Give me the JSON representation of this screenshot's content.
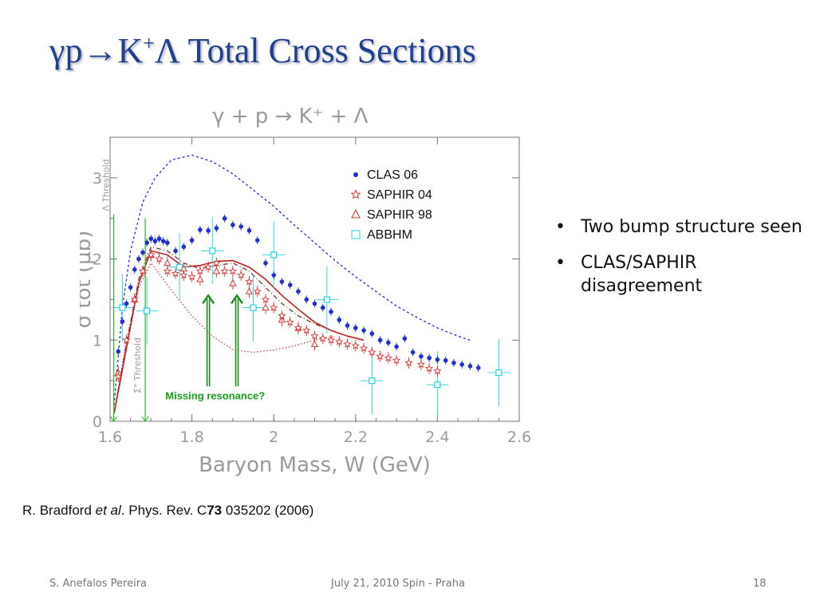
{
  "slide": {
    "title_prefix": "γp",
    "title_arrow": "→",
    "title_k": "K",
    "title_sup": "+",
    "title_rest": "Λ Total Cross Sections"
  },
  "bullets": [
    "Two bump structure seen",
    "CLAS/SAPHIR disagreement"
  ],
  "citation": {
    "pre": "R. Bradford ",
    "italic": "et al",
    "mid": ". Phys. Rev. C",
    "bold": "73",
    "post": " 035202 (2006)"
  },
  "footer": {
    "left": "S. Anefalos Pereira",
    "center": "July 21, 2010 Spin - Praha",
    "right": "18"
  },
  "chart_data": {
    "type": "scatter",
    "title": "γ + p → K⁺ + Λ",
    "xlabel": "Baryon Mass, W (GeV)",
    "ylabel": "σ tot (μb)",
    "xlim": [
      1.6,
      2.6
    ],
    "ylim": [
      0,
      3.5
    ],
    "xticks": [
      "1.6",
      "1.8",
      "2",
      "2.2",
      "2.4",
      "2.6"
    ],
    "yticks": [
      "0",
      "1",
      "2",
      "3"
    ],
    "grid": false,
    "legend_position": "top-right",
    "colors": {
      "clas": "#1f2fd0",
      "saphir": "#e03030",
      "abbhm": "#22d4e0",
      "threshold": "#22bb22",
      "axis": "#777777"
    },
    "series": [
      {
        "name": "CLAS 06",
        "marker": "filled-circle",
        "x": [
          1.62,
          1.63,
          1.64,
          1.65,
          1.66,
          1.67,
          1.68,
          1.69,
          1.7,
          1.71,
          1.72,
          1.73,
          1.74,
          1.76,
          1.78,
          1.8,
          1.82,
          1.84,
          1.86,
          1.88,
          1.9,
          1.92,
          1.94,
          1.96,
          1.98,
          2.0,
          2.02,
          2.04,
          2.06,
          2.08,
          2.1,
          2.12,
          2.14,
          2.16,
          2.18,
          2.2,
          2.22,
          2.24,
          2.26,
          2.28,
          2.3,
          2.32,
          2.34,
          2.36,
          2.38,
          2.4,
          2.42,
          2.44,
          2.46,
          2.48,
          2.5
        ],
        "y": [
          0.86,
          1.23,
          1.45,
          1.65,
          1.87,
          2.0,
          2.08,
          2.2,
          2.25,
          2.22,
          2.25,
          2.22,
          2.2,
          2.1,
          2.15,
          2.23,
          2.36,
          2.35,
          2.38,
          2.5,
          2.42,
          2.4,
          2.35,
          2.23,
          1.95,
          1.8,
          1.72,
          1.68,
          1.6,
          1.5,
          1.45,
          1.4,
          1.35,
          1.25,
          1.18,
          1.15,
          1.12,
          1.08,
          1.0,
          0.97,
          0.92,
          1.02,
          0.85,
          0.8,
          0.78,
          0.76,
          0.75,
          0.72,
          0.7,
          0.68,
          0.66
        ]
      },
      {
        "name": "SAPHIR 04",
        "marker": "open-star",
        "x": [
          1.62,
          1.64,
          1.66,
          1.68,
          1.7,
          1.72,
          1.74,
          1.76,
          1.78,
          1.8,
          1.82,
          1.84,
          1.86,
          1.88,
          1.9,
          1.92,
          1.94,
          1.96,
          1.98,
          2.0,
          2.02,
          2.04,
          2.06,
          2.08,
          2.1,
          2.12,
          2.14,
          2.16,
          2.18,
          2.2,
          2.22,
          2.24,
          2.26,
          2.28,
          2.3,
          2.33,
          2.36,
          2.38,
          2.4
        ],
        "y": [
          0.55,
          1.0,
          1.5,
          1.85,
          2.05,
          2.0,
          1.85,
          1.82,
          1.8,
          1.78,
          1.85,
          1.9,
          1.95,
          1.85,
          1.85,
          1.8,
          1.72,
          1.6,
          1.5,
          1.4,
          1.3,
          1.22,
          1.15,
          1.12,
          1.05,
          1.02,
          1.0,
          0.98,
          0.95,
          0.93,
          0.9,
          0.85,
          0.8,
          0.78,
          0.75,
          0.72,
          0.7,
          0.65,
          0.62
        ]
      },
      {
        "name": "SAPHIR 98",
        "marker": "open-triangle",
        "x": [
          1.62,
          1.66,
          1.7,
          1.74,
          1.78,
          1.82,
          1.86,
          1.9,
          1.94,
          1.98,
          2.02,
          2.06,
          2.1
        ],
        "y": [
          0.6,
          1.5,
          2.05,
          1.95,
          1.88,
          1.75,
          1.85,
          1.7,
          1.6,
          1.4,
          1.25,
          1.15,
          0.95
        ]
      },
      {
        "name": "ABBHM",
        "marker": "open-square",
        "x": [
          1.63,
          1.69,
          1.77,
          1.85,
          1.95,
          2.0,
          2.13,
          2.24,
          2.4,
          2.55
        ],
        "y": [
          1.4,
          1.36,
          1.9,
          2.1,
          1.4,
          2.05,
          1.5,
          0.5,
          0.45,
          0.6
        ]
      }
    ],
    "curves": {
      "solid_fit": {
        "x": [
          1.61,
          1.64,
          1.67,
          1.7,
          1.74,
          1.78,
          1.82,
          1.86,
          1.9,
          1.94,
          1.98,
          2.02,
          2.06,
          2.1,
          2.14,
          2.18,
          2.22
        ],
        "y": [
          0.1,
          0.9,
          1.7,
          2.1,
          2.05,
          1.9,
          1.92,
          1.97,
          1.98,
          1.9,
          1.75,
          1.55,
          1.38,
          1.22,
          1.12,
          1.05,
          1.0
        ]
      },
      "dash_dot_fit": {
        "x": [
          1.61,
          1.64,
          1.67,
          1.7,
          1.74,
          1.78,
          1.82,
          1.86,
          1.9,
          1.94,
          1.98,
          2.02,
          2.06,
          2.1,
          2.14
        ],
        "y": [
          0.1,
          0.95,
          1.75,
          2.15,
          2.1,
          1.95,
          1.88,
          1.92,
          1.95,
          1.85,
          1.65,
          1.45,
          1.3,
          1.2,
          1.12
        ]
      },
      "dotted_fit": {
        "x": [
          1.61,
          1.64,
          1.67,
          1.7,
          1.73,
          1.76,
          1.8,
          1.85,
          1.9,
          1.95,
          2.0,
          2.05,
          2.1,
          2.15
        ],
        "y": [
          0.1,
          1.0,
          1.65,
          1.95,
          1.75,
          1.55,
          1.3,
          1.05,
          0.88,
          0.85,
          0.88,
          0.93,
          1.0,
          1.05
        ]
      },
      "blue_dashed_model": {
        "x": [
          1.61,
          1.63,
          1.65,
          1.68,
          1.71,
          1.75,
          1.8,
          1.85,
          1.9,
          1.95,
          2.0,
          2.05,
          2.1,
          2.15,
          2.2,
          2.25,
          2.3,
          2.35,
          2.4,
          2.45,
          2.48
        ],
        "y": [
          0.2,
          1.4,
          2.1,
          2.7,
          3.0,
          3.22,
          3.28,
          3.2,
          3.05,
          2.85,
          2.65,
          2.42,
          2.2,
          1.98,
          1.78,
          1.6,
          1.42,
          1.28,
          1.15,
          1.05,
          1.0
        ]
      }
    },
    "thresholds": [
      {
        "label": "Λ Threshold",
        "x": 1.609
      },
      {
        "label": "Σ° Threshold",
        "x": 1.686
      }
    ],
    "annotations": [
      {
        "text": "Missing  resonance?",
        "arrows_x": [
          1.84,
          1.91
        ],
        "arrow_tip_y": 1.55,
        "arrow_base_y": 0.43
      }
    ]
  }
}
